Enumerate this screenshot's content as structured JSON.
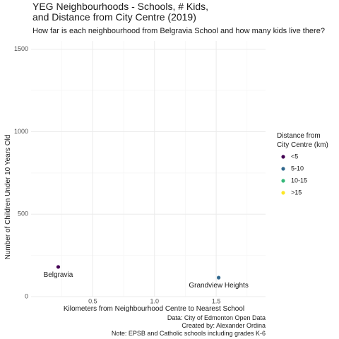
{
  "title_lines": [
    "YEG Neighbourhoods - Schools, # Kids,",
    "and Distance from City Centre (2019)"
  ],
  "subtitle": "How far is each neighbourhood from Belgravia School and how many kids live there?",
  "caption_lines": [
    "Data: City of Edmonton Open Data",
    "Created by: Alexander Ordina",
    "Note: EPSB and Catholic schools including grades K-6"
  ],
  "chart_data": {
    "type": "scatter",
    "xlabel": "Kilometers from Neighbourhood Centre to Nearest School",
    "ylabel": "Number of Children Under 10 Years Old",
    "xlim": [
      0,
      1.9
    ],
    "ylim": [
      0,
      1550
    ],
    "x_ticks": [
      0.5,
      1.0,
      1.5
    ],
    "x_tick_labels": [
      "0.5",
      "1.0",
      "1.5"
    ],
    "y_ticks": [
      0,
      500,
      1000,
      1500
    ],
    "y_tick_labels": [
      "0",
      "500",
      "1000",
      "1500"
    ],
    "grid": true,
    "legend": {
      "title_lines": [
        "Distance from",
        "City Centre (km)"
      ],
      "placement": "right",
      "items": [
        {
          "label": "<5",
          "color": "#440154"
        },
        {
          "label": "5-10",
          "color": "#31688e"
        },
        {
          "label": "10-15",
          "color": "#35b779"
        },
        {
          "label": ">15",
          "color": "#fde725"
        }
      ]
    },
    "points": [
      {
        "label": "Belgravia",
        "x": 0.22,
        "y": 180,
        "group": "<5"
      },
      {
        "label": "Grandview Heights",
        "x": 1.52,
        "y": 115,
        "group": "5-10"
      }
    ]
  }
}
